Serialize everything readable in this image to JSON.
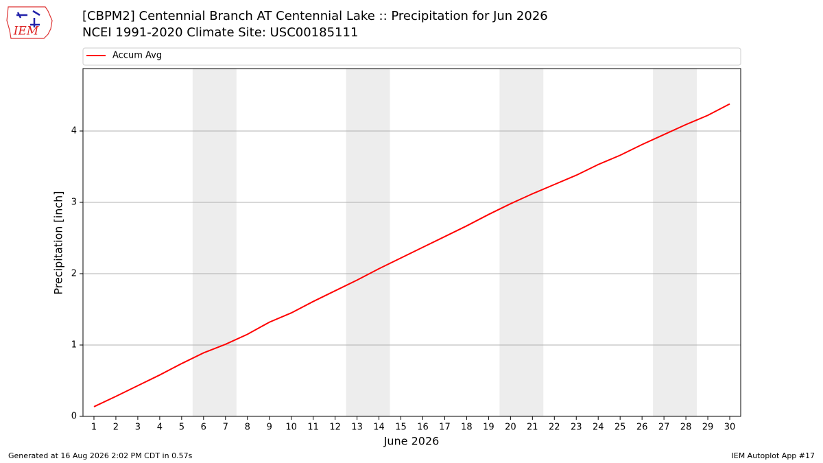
{
  "chart_data": {
    "type": "line",
    "title": "[CBPM2] Centennial Branch  AT Centennial Lake :: Precipitation for Jun 2026",
    "subtitle": "NCEI 1991-2020 Climate Site: USC00185111",
    "x_label": "June 2026",
    "y_label": "Precipitation [inch]",
    "x": [
      1,
      2,
      3,
      4,
      5,
      6,
      7,
      8,
      9,
      10,
      11,
      12,
      13,
      14,
      15,
      16,
      17,
      18,
      19,
      20,
      21,
      22,
      23,
      24,
      25,
      26,
      27,
      28,
      29,
      30
    ],
    "series": [
      {
        "name": "Accum Avg",
        "color": "#ff0000",
        "values": [
          0.135,
          0.28,
          0.43,
          0.58,
          0.74,
          0.89,
          1.01,
          1.15,
          1.32,
          1.45,
          1.61,
          1.76,
          1.91,
          2.07,
          2.22,
          2.37,
          2.52,
          2.67,
          2.83,
          2.98,
          3.12,
          3.25,
          3.38,
          3.53,
          3.66,
          3.81,
          3.95,
          4.09,
          4.22,
          4.38
        ]
      }
    ],
    "xlim": [
      0.5,
      30.5
    ],
    "xticks": [
      1,
      2,
      3,
      4,
      5,
      6,
      7,
      8,
      9,
      10,
      11,
      12,
      13,
      14,
      15,
      16,
      17,
      18,
      19,
      20,
      21,
      22,
      23,
      24,
      25,
      26,
      27,
      28,
      29,
      30
    ],
    "ylim": [
      0,
      4.875
    ],
    "yticks": [
      0,
      1,
      2,
      3,
      4
    ],
    "grid": true,
    "legend": "top",
    "weekend_bands": [
      [
        5.5,
        7.5
      ],
      [
        12.5,
        14.5
      ],
      [
        19.5,
        21.5
      ],
      [
        26.5,
        28.5
      ]
    ],
    "band_color": "#ededed",
    "footer_left": "Generated at 16 Aug 2026 2:02 PM CDT in 0.57s",
    "footer_right": "IEM Autoplot App #17",
    "logo_text": "IEM"
  }
}
